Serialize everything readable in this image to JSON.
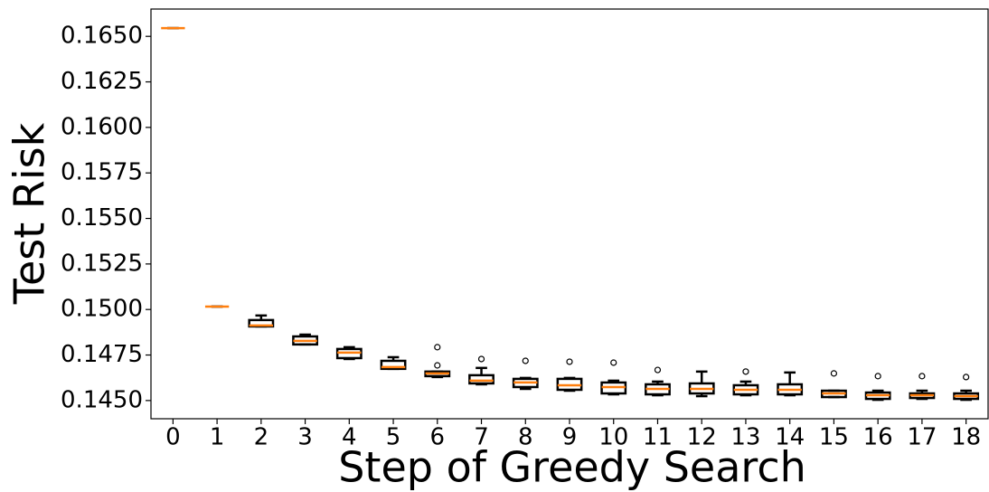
{
  "chart_data": {
    "type": "box",
    "x_label": "Step of Greedy Search",
    "y_label": "Test Risk",
    "categories": [
      "0",
      "1",
      "2",
      "3",
      "4",
      "5",
      "6",
      "7",
      "8",
      "9",
      "10",
      "11",
      "12",
      "13",
      "14",
      "15",
      "16",
      "17",
      "18"
    ],
    "boxes": [
      {
        "min": 0.16545,
        "q1": 0.16545,
        "median": 0.16545,
        "q3": 0.16545,
        "max": 0.16545
      },
      {
        "min": 0.15016,
        "q1": 0.15016,
        "median": 0.15016,
        "q3": 0.15016,
        "max": 0.15016
      },
      {
        "min": 0.14907,
        "q1": 0.14907,
        "median": 0.14912,
        "q3": 0.14942,
        "max": 0.14967
      },
      {
        "min": 0.14808,
        "q1": 0.14808,
        "median": 0.14828,
        "q3": 0.14852,
        "max": 0.14862
      },
      {
        "min": 0.14728,
        "q1": 0.14733,
        "median": 0.14763,
        "q3": 0.14783,
        "max": 0.14793
      },
      {
        "min": 0.14674,
        "q1": 0.14674,
        "median": 0.14684,
        "q3": 0.14718,
        "max": 0.14738
      },
      {
        "min": 0.14629,
        "q1": 0.14634,
        "median": 0.14649,
        "q3": 0.14659,
        "max": 0.14659,
        "outliers": [
          0.14693,
          0.14793
        ]
      },
      {
        "min": 0.14589,
        "q1": 0.14594,
        "median": 0.14609,
        "q3": 0.14639,
        "max": 0.14679,
        "outliers": [
          0.14728
        ]
      },
      {
        "min": 0.14564,
        "q1": 0.14574,
        "median": 0.14599,
        "q3": 0.14619,
        "max": 0.14624,
        "outliers": [
          0.14718
        ]
      },
      {
        "min": 0.14554,
        "q1": 0.14559,
        "median": 0.14584,
        "q3": 0.14619,
        "max": 0.14624,
        "outliers": [
          0.14713
        ]
      },
      {
        "min": 0.14534,
        "q1": 0.14539,
        "median": 0.14574,
        "q3": 0.14599,
        "max": 0.14609,
        "outliers": [
          0.14708
        ]
      },
      {
        "min": 0.14529,
        "q1": 0.14534,
        "median": 0.14564,
        "q3": 0.14589,
        "max": 0.14604,
        "outliers": [
          0.14668
        ]
      },
      {
        "min": 0.14524,
        "q1": 0.14539,
        "median": 0.14564,
        "q3": 0.14594,
        "max": 0.14659
      },
      {
        "min": 0.14529,
        "q1": 0.14534,
        "median": 0.14559,
        "q3": 0.14584,
        "max": 0.14604,
        "outliers": [
          0.14659
        ]
      },
      {
        "min": 0.14529,
        "q1": 0.14534,
        "median": 0.14559,
        "q3": 0.14589,
        "max": 0.14654
      },
      {
        "min": 0.14519,
        "q1": 0.14519,
        "median": 0.14539,
        "q3": 0.14554,
        "max": 0.14554,
        "outliers": [
          0.14649
        ]
      },
      {
        "min": 0.14504,
        "q1": 0.14509,
        "median": 0.14529,
        "q3": 0.14544,
        "max": 0.14554,
        "outliers": [
          0.14634
        ]
      },
      {
        "min": 0.14509,
        "q1": 0.14514,
        "median": 0.14529,
        "q3": 0.14539,
        "max": 0.14554,
        "outliers": [
          0.14634
        ]
      },
      {
        "min": 0.14504,
        "q1": 0.14509,
        "median": 0.14524,
        "q3": 0.14539,
        "max": 0.14554,
        "outliers": [
          0.14629
        ]
      }
    ],
    "box_color": "#000000",
    "median_color": "#ff7f0e",
    "ylim": [
      0.144,
      0.1665
    ],
    "yticks": [
      {
        "value": 0.145,
        "label": "0.1450"
      },
      0.1475,
      {
        "value": 0.15,
        "label": "0.1500"
      },
      0.1525,
      {
        "value": 0.155,
        "label": "0.1550"
      },
      0.1575,
      {
        "value": 0.16,
        "label": "0.1600"
      },
      0.1625,
      {
        "value": 0.165,
        "label": "0.1650"
      }
    ]
  }
}
